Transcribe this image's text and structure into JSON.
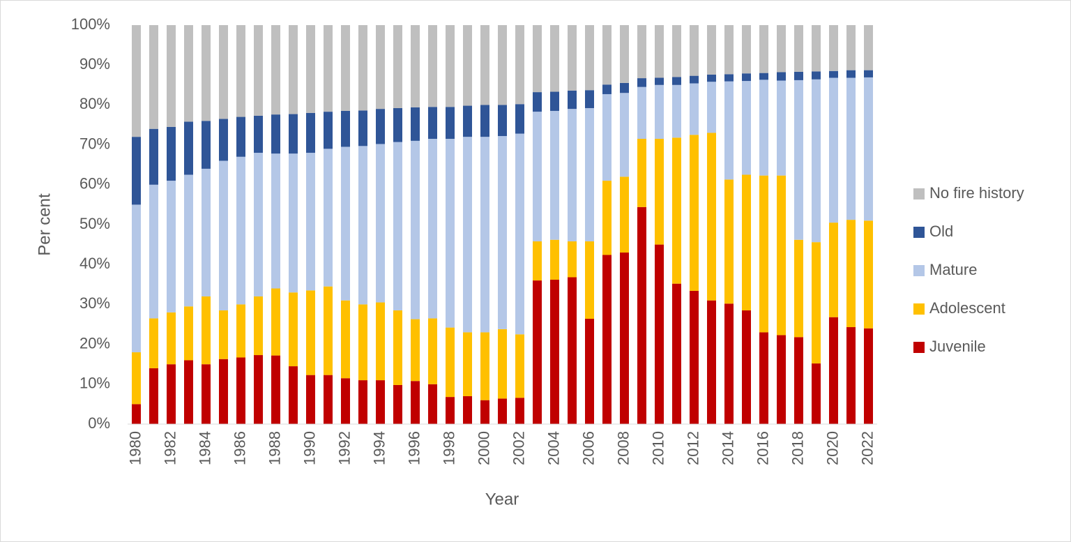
{
  "chart_data": {
    "type": "stacked_bar",
    "x_label": "Year",
    "y_label": "Per cent",
    "categories": [
      "1980",
      null,
      "1982",
      null,
      "1984",
      null,
      "1986",
      null,
      "1988",
      null,
      "1990",
      null,
      "1992",
      null,
      "1994",
      null,
      "1996",
      null,
      "1998",
      null,
      "2000",
      null,
      "2002",
      null,
      "2004",
      null,
      "2006",
      null,
      "2008",
      null,
      "2010",
      null,
      "2012",
      null,
      "2014",
      null,
      "2016",
      null,
      "2018",
      null,
      "2020",
      null,
      "2022"
    ],
    "series": [
      {
        "name": "Juvenile",
        "color": "#c00000",
        "values": [
          5,
          14,
          15,
          16,
          15,
          16.3,
          16.7,
          17.3,
          17.2,
          14.5,
          12.3,
          12.3,
          11.5,
          11,
          11,
          9.8,
          10.8,
          10,
          6.8,
          7,
          6,
          6.4,
          6.6,
          36,
          36.2,
          36.8,
          26.4,
          42.4,
          43,
          54.4,
          45,
          35.2,
          33.4,
          31,
          30.2,
          28.5,
          23,
          22.3,
          21.8,
          15.2,
          26.8,
          24.3,
          24
        ]
      },
      {
        "name": "Adolescent",
        "color": "#ffc000",
        "values": [
          13,
          12.5,
          13,
          13.5,
          17,
          12.2,
          13.3,
          14.7,
          16.8,
          18.5,
          21.2,
          22.2,
          19.5,
          19,
          19.5,
          18.7,
          15.5,
          16.5,
          17.4,
          16,
          17,
          17.4,
          15.9,
          9.8,
          10,
          9,
          19.4,
          18.6,
          19,
          17.1,
          26.5,
          36.6,
          39.1,
          42,
          31.1,
          34,
          39.3,
          40,
          24.4,
          30.4,
          23.7,
          26.9,
          27
        ]
      },
      {
        "name": "Mature",
        "color": "#b4c7e7",
        "values": [
          37,
          33.5,
          33,
          33,
          32,
          37.5,
          37,
          36,
          33.8,
          34.8,
          34.5,
          34.5,
          38.5,
          39.7,
          39.7,
          42.2,
          44.7,
          45,
          47.3,
          49,
          49,
          48.4,
          50.3,
          32.5,
          32.3,
          33.2,
          33.4,
          21.7,
          21,
          13,
          13.5,
          13.2,
          12.9,
          12.8,
          24.6,
          23.5,
          24,
          23.8,
          40,
          40.8,
          36.3,
          35.6,
          35.9
        ]
      },
      {
        "name": "Old",
        "color": "#2f5597",
        "values": [
          17,
          14,
          13.5,
          13.3,
          12,
          10.5,
          10,
          9.3,
          9.8,
          9.9,
          10,
          9.3,
          9,
          8.9,
          8.8,
          8.5,
          8.4,
          8,
          8,
          7.8,
          8,
          7.8,
          7.4,
          4.9,
          4.8,
          4.6,
          4.5,
          2.4,
          2.5,
          2.2,
          1.8,
          2,
          1.9,
          1.8,
          1.8,
          1.9,
          1.7,
          2.1,
          2.1,
          2,
          1.7,
          1.9,
          1.8
        ]
      },
      {
        "name": "No fire history",
        "color": "#bfbfbf",
        "values": [
          28,
          26,
          25.5,
          24.2,
          24,
          23.5,
          23,
          22.7,
          22.4,
          22.3,
          22,
          21.7,
          21.5,
          21.4,
          21,
          20.8,
          20.6,
          20.5,
          20.5,
          20.2,
          20,
          20,
          19.8,
          16.8,
          16.7,
          16.4,
          16.3,
          14.9,
          14.5,
          13.3,
          13.2,
          13,
          12.7,
          12.4,
          12.3,
          12.1,
          12,
          11.8,
          11.7,
          11.6,
          11.5,
          11.3,
          11.3
        ]
      }
    ],
    "ylim": [
      0,
      100
    ],
    "yticks": [
      {
        "value": 0,
        "label": "0%"
      },
      {
        "value": 10,
        "label": "10%"
      },
      {
        "value": 20,
        "label": "20%"
      },
      {
        "value": 30,
        "label": "30%"
      },
      {
        "value": 40,
        "label": "40%"
      },
      {
        "value": 50,
        "label": "50%"
      },
      {
        "value": 60,
        "label": "60%"
      },
      {
        "value": 70,
        "label": "70%"
      },
      {
        "value": 80,
        "label": "80%"
      },
      {
        "value": 90,
        "label": "90%"
      },
      {
        "value": 100,
        "label": "100%"
      }
    ],
    "grid": false,
    "legend": "right"
  }
}
